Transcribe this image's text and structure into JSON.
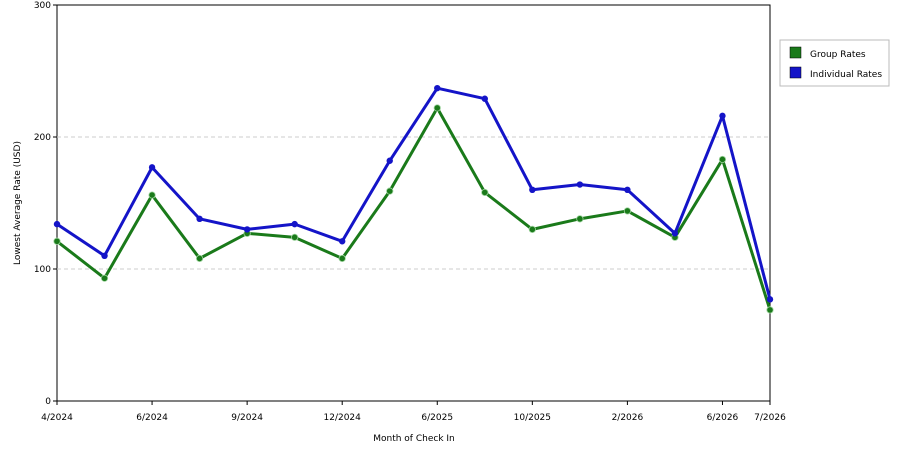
{
  "chart_data": {
    "type": "line",
    "xlabel": "Month of Check In",
    "ylabel": "Lowest Average Rate (USD)",
    "ylim": [
      0,
      300
    ],
    "yticks": [
      0,
      100,
      200,
      300
    ],
    "x_tick_labels": [
      "4/2024",
      "6/2024",
      "9/2024",
      "12/2024",
      "6/2025",
      "10/2025",
      "2/2026",
      "6/2026",
      "7/2026"
    ],
    "x_tick_positions": [
      0,
      2,
      4,
      6,
      8,
      10,
      12,
      14,
      15
    ],
    "x_count": 16,
    "grid": true,
    "legend_placement": "top-right",
    "series": [
      {
        "name": "Group Rates",
        "color": "#1a7a1a",
        "values": [
          121,
          93,
          156,
          108,
          127,
          124,
          108,
          159,
          222,
          158,
          130,
          138,
          144,
          124,
          183,
          69
        ]
      },
      {
        "name": "Individual Rates",
        "color": "#1414c8",
        "values": [
          134,
          110,
          177,
          138,
          130,
          134,
          121,
          182,
          237,
          229,
          160,
          164,
          160,
          127,
          216,
          77
        ]
      }
    ]
  }
}
